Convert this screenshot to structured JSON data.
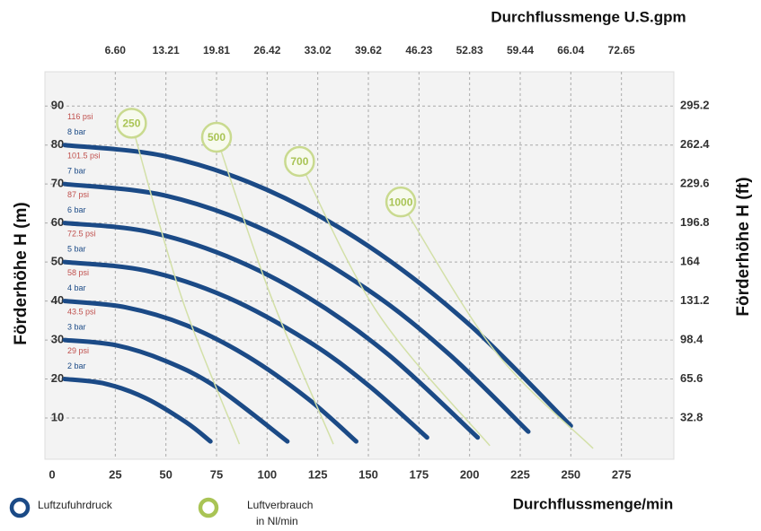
{
  "chart_data": {
    "type": "line",
    "x_label": "Durchflussmenge/min",
    "x2_label": "Durchflussmenge U.S.gpm",
    "y_label": "Förderhöhe H (m)",
    "y2_label": "Förderhöhe H (ft)",
    "xlim": [
      0,
      300
    ],
    "xticks": [
      0,
      25,
      50,
      75,
      100,
      125,
      150,
      175,
      200,
      225,
      250,
      275
    ],
    "x2lim": [
      0,
      79.25
    ],
    "x2ticks": [
      {
        "value": 6.6,
        "label": "6.60"
      },
      13.21,
      19.81,
      26.42,
      33.02,
      39.62,
      46.23,
      52.83,
      59.44,
      66.04,
      72.65
    ],
    "ylim": [
      0,
      95
    ],
    "yticks": [
      10,
      20,
      30,
      40,
      50,
      60,
      70,
      80,
      90
    ],
    "y2lim": [
      0,
      311.6
    ],
    "y2ticks": [
      32.8,
      65.6,
      98.4,
      131.2,
      164,
      196.8,
      229.6,
      262.4,
      295.2
    ],
    "grid": true,
    "series_groups": [
      {
        "name": [
          "Luftzufuhrdruck"
        ],
        "color": "#1b4a86",
        "series": [
          {
            "name": "8 bar",
            "label": "116 psi",
            "x": [
              0,
              50,
              100,
              150,
              200,
              250
            ],
            "values": [
              80,
              77.1,
              68.5,
              54.1,
              33.9,
              8
            ]
          },
          {
            "name": "7 bar",
            "label": "101.5 psi",
            "x": [
              0,
              50,
              100,
              150,
              190,
              229
            ],
            "values": [
              70,
              67,
              57.9,
              42.8,
              26.3,
              6.5
            ]
          },
          {
            "name": "6 bar",
            "label": "87 psi",
            "x": [
              0,
              40,
              80,
              120,
              160,
              204
            ],
            "values": [
              60,
              57.9,
              51.5,
              41,
              26.2,
              5
            ]
          },
          {
            "name": "5 bar",
            "label": "72.5 psi",
            "x": [
              0,
              40,
              80,
              120,
              150,
              179
            ],
            "values": [
              50,
              47.8,
              41,
              29.8,
              18.4,
              5
            ]
          },
          {
            "name": "4 bar",
            "label": "58 psi",
            "x": [
              0,
              30,
              60,
              90,
              120,
              144
            ],
            "values": [
              40,
              38.4,
              33.8,
              25.9,
              15,
              4
            ]
          },
          {
            "name": "3 bar",
            "label": "43.5 psi",
            "x": [
              0,
              25,
              50,
              75,
              110
            ],
            "values": [
              30,
              28.7,
              24.6,
              17.9,
              4
            ]
          },
          {
            "name": "2 bar",
            "label": "29 psi",
            "x": [
              0,
              20,
              40,
              60,
              72
            ],
            "values": [
              20,
              18.8,
              15.1,
              8.9,
              4
            ]
          }
        ]
      },
      {
        "name": [
          "Luftverbrauch",
          "in Nl/min"
        ],
        "color": "#a9c455",
        "series": [
          {
            "name": "250",
            "x": [
              33,
              57.5,
              86.3
            ],
            "values": [
              85.6,
              41.3,
              3.3
            ]
          },
          {
            "name": "500",
            "x": [
              75,
              101.8,
              132.7
            ],
            "values": [
              82,
              41.3,
              3.3
            ]
          },
          {
            "name": "700",
            "x": [
              116,
              154.9,
              210
            ],
            "values": [
              75.8,
              36.7,
              2.9
            ]
          },
          {
            "name": "1000",
            "x": [
              166,
              212,
              261
            ],
            "values": [
              65.4,
              27.5,
              2.2
            ]
          }
        ]
      }
    ]
  }
}
